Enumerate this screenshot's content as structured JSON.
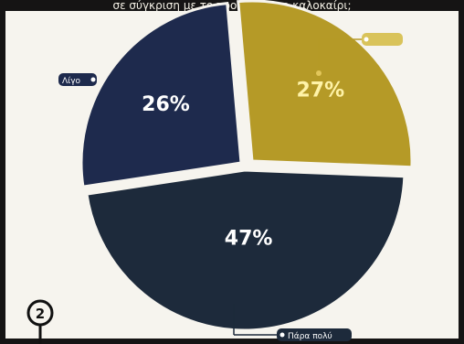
{
  "header": {
    "title": "σε σύγκριση με το προηγούμενο καλοκαίρι;"
  },
  "chart_data": {
    "type": "pie",
    "slices": [
      {
        "label": "",
        "value": 27,
        "display": "27%",
        "color": "#b59a27",
        "text_color": "#fff3a8"
      },
      {
        "label": "Πάρα πολύ",
        "value": 47,
        "display": "47%",
        "color": "#1d2a3b",
        "text_color": "#ffffff"
      },
      {
        "label": "Λίγο",
        "value": 26,
        "display": "26%",
        "color": "#1e2a4d",
        "text_color": "#ffffff"
      }
    ],
    "legend": "callout labels"
  },
  "badge": {
    "number": "2"
  },
  "colors": {
    "frame": "#151414",
    "panel": "#f6f4ee",
    "accent": "#b59a27"
  }
}
